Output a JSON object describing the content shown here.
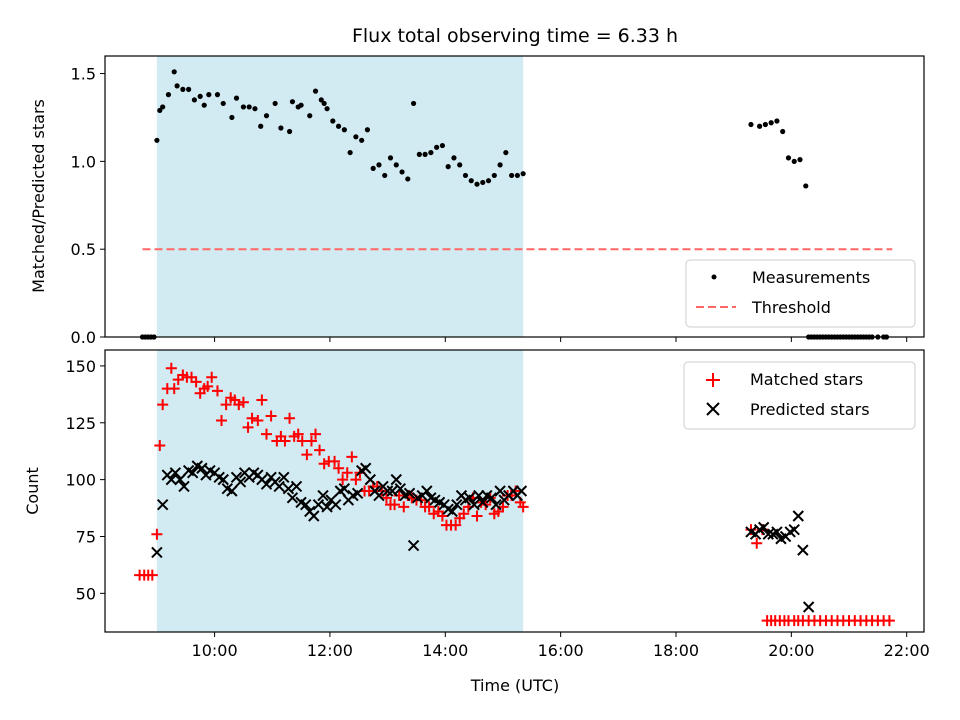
{
  "chart_data": {
    "type": "scatter",
    "title": "Flux total observing time = 6.33 h",
    "xlabel": "Time (UTC)",
    "x_ticks": [
      "10:00",
      "12:00",
      "14:00",
      "16:00",
      "18:00",
      "20:00",
      "22:00"
    ],
    "x_tick_hours": [
      10,
      12,
      14,
      16,
      18,
      20,
      22
    ],
    "xlim_hours": [
      8.1,
      22.3
    ],
    "shaded_span_hours": [
      9.0,
      15.35
    ],
    "colors": {
      "span": "#add8e6",
      "measurements": "#000000",
      "threshold": "#ff6666",
      "matched": "#ff0000",
      "predicted": "#000000"
    },
    "panels": [
      {
        "ylabel": "Matched/Predicted stars",
        "ylim": [
          0,
          1.6
        ],
        "y_ticks": [
          "0.0",
          "0.5",
          "1.0",
          "1.5"
        ],
        "y_tick_values": [
          0,
          0.5,
          1.0,
          1.5
        ],
        "legend_position": "lower right",
        "legend": [
          "Measurements",
          "Threshold"
        ],
        "threshold": {
          "name": "Threshold",
          "y": 0.5,
          "x_range": [
            8.75,
            21.75
          ]
        },
        "measurements": {
          "name": "Measurements",
          "x": [
            8.75,
            8.8,
            8.85,
            8.9,
            8.95,
            9.0,
            9.05,
            9.1,
            9.2,
            9.3,
            9.35,
            9.45,
            9.55,
            9.65,
            9.75,
            9.82,
            9.9,
            10.05,
            10.15,
            10.3,
            10.38,
            10.5,
            10.6,
            10.7,
            10.8,
            10.9,
            11.05,
            11.15,
            11.3,
            11.35,
            11.45,
            11.5,
            11.65,
            11.75,
            11.85,
            11.9,
            11.95,
            12.05,
            12.15,
            12.25,
            12.35,
            12.45,
            12.55,
            12.65,
            12.75,
            12.85,
            12.95,
            13.05,
            13.15,
            13.25,
            13.35,
            13.45,
            13.55,
            13.65,
            13.75,
            13.85,
            13.95,
            14.05,
            14.15,
            14.25,
            14.35,
            14.45,
            14.55,
            14.65,
            14.75,
            14.85,
            14.95,
            15.05,
            15.15,
            15.25,
            15.35,
            19.3,
            19.45,
            19.55,
            19.65,
            19.75,
            19.85,
            19.95,
            20.05,
            20.15,
            20.25,
            20.3,
            20.35,
            20.4,
            20.45,
            20.5,
            20.55,
            20.6,
            20.65,
            20.7,
            20.75,
            20.8,
            20.85,
            20.9,
            20.95,
            21.0,
            21.05,
            21.1,
            21.15,
            21.2,
            21.25,
            21.3,
            21.35,
            21.4,
            21.5,
            21.6,
            21.65
          ],
          "y": [
            0,
            0,
            0,
            0,
            0,
            1.12,
            1.29,
            1.31,
            1.38,
            1.51,
            1.43,
            1.41,
            1.41,
            1.35,
            1.37,
            1.32,
            1.38,
            1.38,
            1.33,
            1.25,
            1.36,
            1.31,
            1.31,
            1.3,
            1.2,
            1.26,
            1.33,
            1.19,
            1.17,
            1.34,
            1.31,
            1.32,
            1.26,
            1.4,
            1.35,
            1.33,
            1.3,
            1.23,
            1.2,
            1.18,
            1.05,
            1.14,
            1.12,
            1.18,
            0.96,
            0.98,
            0.92,
            1.02,
            0.98,
            0.94,
            0.9,
            1.33,
            1.04,
            1.04,
            1.05,
            1.08,
            1.09,
            0.97,
            1.02,
            0.98,
            0.92,
            0.89,
            0.87,
            0.88,
            0.89,
            0.92,
            0.98,
            1.05,
            0.92,
            0.92,
            0.93,
            1.21,
            1.2,
            1.21,
            1.22,
            1.23,
            1.17,
            1.02,
            1.0,
            1.01,
            0.86,
            0,
            0,
            0,
            0,
            0,
            0,
            0,
            0,
            0,
            0,
            0,
            0,
            0,
            0,
            0,
            0,
            0,
            0,
            0,
            0,
            0,
            0,
            0,
            0,
            0,
            0
          ]
        }
      },
      {
        "ylabel": "Count",
        "ylim": [
          33,
          157
        ],
        "y_ticks": [
          "50",
          "75",
          "100",
          "125",
          "150"
        ],
        "y_tick_values": [
          50,
          75,
          100,
          125,
          150
        ],
        "legend_position": "upper right",
        "legend": [
          "Matched stars",
          "Predicted stars"
        ],
        "matched": {
          "name": "Matched stars",
          "x": [
            8.7,
            8.78,
            8.85,
            8.92,
            9.0,
            9.05,
            9.1,
            9.18,
            9.25,
            9.3,
            9.37,
            9.45,
            9.52,
            9.6,
            9.68,
            9.75,
            9.82,
            9.88,
            9.95,
            10.05,
            10.12,
            10.2,
            10.28,
            10.35,
            10.42,
            10.5,
            10.58,
            10.65,
            10.75,
            10.82,
            10.9,
            10.98,
            11.08,
            11.15,
            11.22,
            11.3,
            11.38,
            11.45,
            11.52,
            11.6,
            11.68,
            11.75,
            11.82,
            11.9,
            11.98,
            12.08,
            12.15,
            12.22,
            12.3,
            12.38,
            12.45,
            12.52,
            12.6,
            12.68,
            12.75,
            12.82,
            12.9,
            12.98,
            13.05,
            13.12,
            13.2,
            13.28,
            13.35,
            13.42,
            13.5,
            13.58,
            13.65,
            13.72,
            13.8,
            13.88,
            13.95,
            14.02,
            14.1,
            14.18,
            14.25,
            14.32,
            14.4,
            14.48,
            14.55,
            14.62,
            14.7,
            14.78,
            14.85,
            14.92,
            15.0,
            15.08,
            15.15,
            15.22,
            15.3,
            15.35,
            19.3,
            19.4,
            19.5,
            19.58,
            19.65,
            19.72,
            19.8,
            19.88,
            19.95,
            20.05,
            20.12,
            20.2,
            20.3,
            20.4,
            20.5,
            20.6,
            20.7,
            20.8,
            20.9,
            21.0,
            21.1,
            21.2,
            21.3,
            21.4,
            21.5,
            21.6,
            21.7
          ],
          "y": [
            58,
            58,
            58,
            58,
            76,
            115,
            133,
            140,
            149,
            140,
            144,
            146,
            145,
            145,
            143,
            138,
            140,
            141,
            145,
            139,
            126,
            133,
            136,
            135,
            133,
            134,
            123,
            127,
            126,
            135,
            120,
            128,
            117,
            119,
            117,
            127,
            119,
            120,
            117,
            111,
            117,
            120,
            113,
            107,
            108,
            108,
            105,
            100,
            103,
            110,
            100,
            103,
            95,
            95,
            97,
            97,
            95,
            92,
            89,
            89,
            93,
            88,
            93,
            92,
            91,
            91,
            88,
            88,
            85,
            86,
            84,
            80,
            80,
            80,
            83,
            85,
            88,
            92,
            84,
            90,
            89,
            92,
            85,
            86,
            88,
            93,
            93,
            95,
            90,
            88,
            78,
            72,
            78,
            38,
            38,
            38,
            38,
            38,
            38,
            38,
            38,
            38,
            38,
            38,
            38,
            38,
            38,
            38,
            38,
            38,
            38,
            38,
            38,
            38,
            38,
            38,
            38
          ]
        },
        "predicted": {
          "name": "Predicted stars",
          "x": [
            9.0,
            9.1,
            9.18,
            9.25,
            9.32,
            9.4,
            9.47,
            9.55,
            9.62,
            9.7,
            9.78,
            9.85,
            9.92,
            10.0,
            10.08,
            10.15,
            10.22,
            10.3,
            10.38,
            10.45,
            10.52,
            10.6,
            10.68,
            10.75,
            10.82,
            10.9,
            10.98,
            11.05,
            11.12,
            11.2,
            11.28,
            11.35,
            11.42,
            11.5,
            11.58,
            11.65,
            11.72,
            11.8,
            11.88,
            11.95,
            12.02,
            12.1,
            12.18,
            12.25,
            12.32,
            12.4,
            12.48,
            12.55,
            12.62,
            12.7,
            12.78,
            12.85,
            12.92,
            13.0,
            13.08,
            13.15,
            13.22,
            13.3,
            13.38,
            13.45,
            13.52,
            13.6,
            13.68,
            13.75,
            13.82,
            13.9,
            13.98,
            14.05,
            14.12,
            14.2,
            14.28,
            14.35,
            14.42,
            14.5,
            14.58,
            14.65,
            14.72,
            14.8,
            14.88,
            14.95,
            15.02,
            15.1,
            15.18,
            15.25,
            15.32,
            19.3,
            19.38,
            19.45,
            19.52,
            19.6,
            19.68,
            19.75,
            19.82,
            19.9,
            19.98,
            20.05,
            20.12,
            20.2,
            20.3
          ],
          "y": [
            68,
            89,
            102,
            100,
            103,
            100,
            97,
            104,
            103,
            106,
            105,
            102,
            104,
            103,
            101,
            100,
            96,
            95,
            101,
            99,
            103,
            101,
            103,
            102,
            100,
            98,
            101,
            99,
            97,
            101,
            96,
            92,
            97,
            90,
            89,
            86,
            84,
            89,
            93,
            88,
            91,
            89,
            95,
            96,
            91,
            93,
            94,
            104,
            105,
            100,
            95,
            93,
            97,
            95,
            95,
            100,
            96,
            93,
            94,
            71,
            92,
            93,
            95,
            92,
            91,
            90,
            89,
            87,
            86,
            89,
            93,
            91,
            92,
            89,
            93,
            90,
            93,
            92,
            89,
            95,
            91,
            93,
            95,
            93,
            95,
            77,
            76,
            78,
            79,
            76,
            76,
            77,
            74,
            75,
            77,
            78,
            84,
            69,
            44
          ]
        }
      }
    ]
  }
}
